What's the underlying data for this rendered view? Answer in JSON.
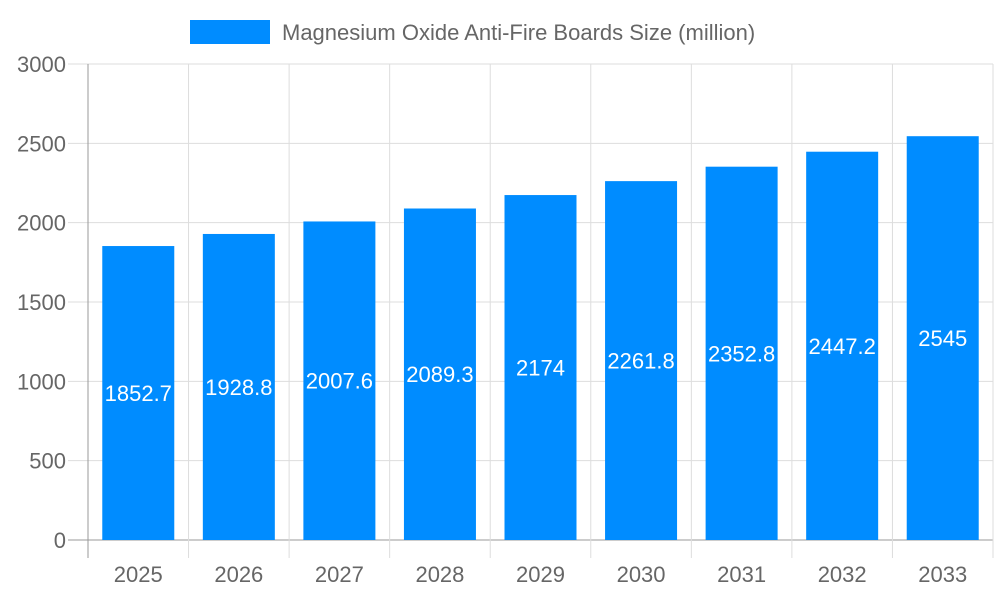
{
  "chart_data": {
    "type": "bar",
    "categories": [
      "2025",
      "2026",
      "2027",
      "2028",
      "2029",
      "2030",
      "2031",
      "2032",
      "2033"
    ],
    "series": [
      {
        "name": "Magnesium Oxide Anti-Fire Boards Size (million)",
        "values": [
          1852.7,
          1928.8,
          2007.6,
          2089.3,
          2174,
          2261.8,
          2352.8,
          2447.2,
          2545
        ],
        "color": "#008cff"
      }
    ],
    "ylim": [
      0,
      3000
    ],
    "yticks": [
      "0",
      "500",
      "1000",
      "1500",
      "2000",
      "2500",
      "3000"
    ],
    "grid": true,
    "legend": "top",
    "data_labels": true,
    "xlabel": "",
    "ylabel": "",
    "title": ""
  }
}
